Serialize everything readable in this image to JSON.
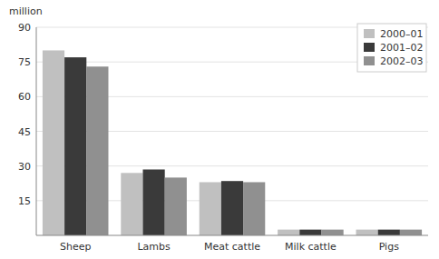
{
  "chart_data": {
    "type": "bar",
    "ylabel": "million",
    "categories": [
      "Sheep",
      "Lambs",
      "Meat cattle",
      "Milk cattle",
      "Pigs"
    ],
    "series": [
      {
        "name": "2000–01",
        "color": "#c0c0c0",
        "values": [
          80,
          27,
          23,
          2.5,
          2.5
        ]
      },
      {
        "name": "2001–02",
        "color": "#3a3a3a",
        "values": [
          77,
          28.5,
          23.5,
          2.5,
          2.5
        ]
      },
      {
        "name": "2002–03",
        "color": "#909090",
        "values": [
          73,
          25,
          23,
          2.5,
          2.5
        ]
      }
    ],
    "ylim": [
      0,
      90
    ],
    "yticks": [
      15,
      30,
      45,
      60,
      75,
      90
    ],
    "grid": true,
    "legend": "upper right"
  }
}
